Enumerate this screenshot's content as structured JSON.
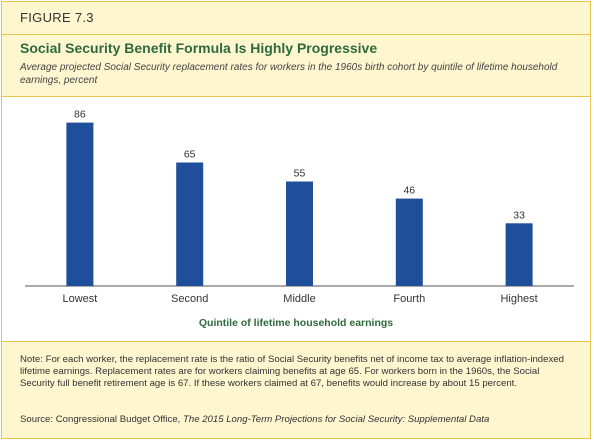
{
  "figure": {
    "label": "FIGURE",
    "number": "7.3",
    "title": "Social Security Benefit Formula Is Highly Progressive",
    "subtitle": "Average projected Social Security replacement rates for workers in the 1960s birth cohort by quintile of lifetime household earnings, percent"
  },
  "chart_data": {
    "type": "bar",
    "categories": [
      "Lowest",
      "Second",
      "Middle",
      "Fourth",
      "Highest"
    ],
    "values": [
      86,
      65,
      55,
      46,
      33
    ],
    "xlabel": "Quintile of lifetime household earnings",
    "ylabel": "",
    "ylim": [
      0,
      100
    ],
    "grid": false,
    "legend": "none",
    "bar_color": "#1f4e9b"
  },
  "footnote": {
    "note": "Note: For each worker, the replacement rate is the ratio of Social Security benefits net of income tax to average inflation-indexed lifetime earnings. Replacement rates are for workers claiming benefits at age 65. For workers born in the 1960s, the Social Security full benefit retirement age is 67. If these workers claimed at 67, benefits would increase by about 15 percent.",
    "source_prefix": "Source: Congressional Budget Office, ",
    "source_title": "The 2015 Long-Term Projections for Social Security: Supplemental Data"
  },
  "colors": {
    "panel_background": "#fdf6cf",
    "border": "#e6c850",
    "title_green": "#2e6a3d",
    "bar_blue": "#1f4e9b"
  }
}
